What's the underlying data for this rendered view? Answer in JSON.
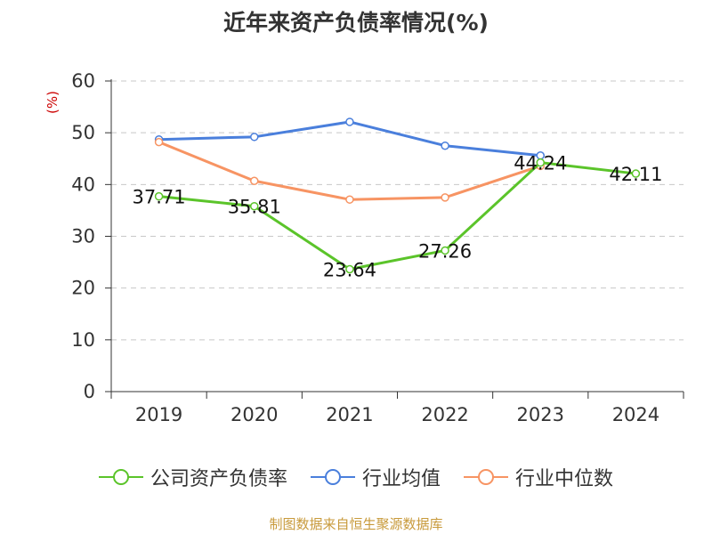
{
  "title": "近年来资产负债率情况(%)",
  "unit": "(%)",
  "source": "制图数据来自恒生聚源数据库",
  "chart_data": {
    "type": "line",
    "categories": [
      "2019",
      "2020",
      "2021",
      "2022",
      "2023",
      "2024"
    ],
    "ylim": [
      0,
      60
    ],
    "yticks": [
      0,
      10,
      20,
      30,
      40,
      50,
      60
    ],
    "grid": true,
    "legend_position": "bottom",
    "series": [
      {
        "name": "公司资产负债率",
        "color": "#5bc42a",
        "values": [
          37.71,
          35.81,
          23.64,
          27.26,
          44.24,
          42.11
        ],
        "labels": [
          "37.71",
          "35.81",
          "23.64",
          "27.26",
          "44.24",
          "42.11"
        ]
      },
      {
        "name": "行业均值",
        "color": "#4a7fdc",
        "values": [
          48.7,
          49.2,
          52.1,
          47.5,
          45.6,
          null
        ]
      },
      {
        "name": "行业中位数",
        "color": "#f79463",
        "values": [
          48.2,
          40.7,
          37.1,
          37.5,
          43.6,
          null
        ]
      }
    ]
  }
}
